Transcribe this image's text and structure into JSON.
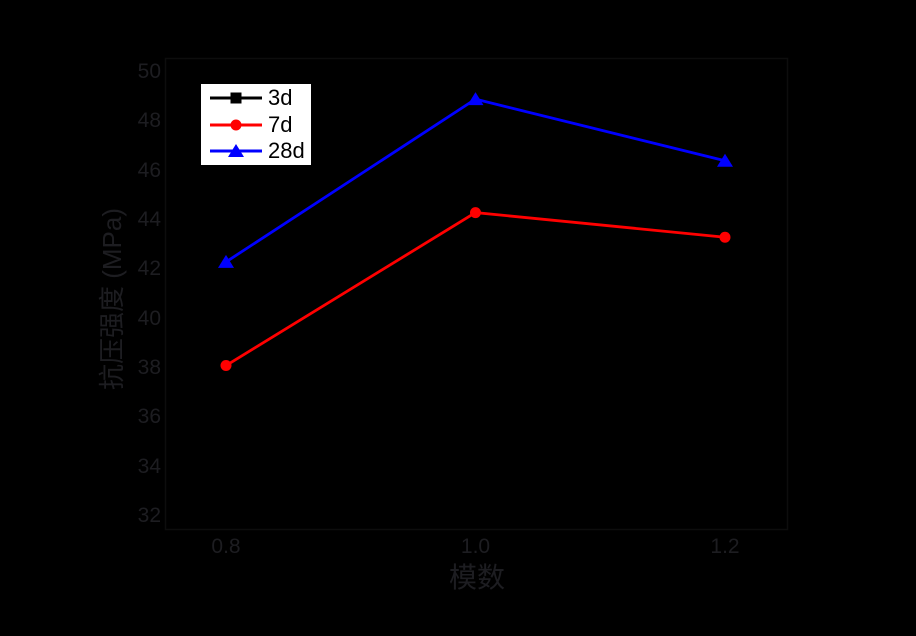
{
  "figure": {
    "background": "#000000",
    "axis_text_color": "#1d1d21",
    "note_visible_elements": "axis text rendered near-black on black background"
  },
  "chart_data": {
    "type": "line",
    "title": "",
    "xlabel": "模数",
    "ylabel": "抗压强度 (MPa)",
    "x": [
      0.8,
      1.0,
      1.2
    ],
    "xtick_labels": [
      "0.8",
      "1.0",
      "1.2"
    ],
    "ytick_labels": [
      "50",
      "48",
      "46",
      "44",
      "42",
      "40",
      "38",
      "36",
      "34",
      "32"
    ],
    "xlim": [
      0.75,
      1.25
    ],
    "ylim": [
      31.4,
      50.6
    ],
    "grid": false,
    "legend_position": "top-left-inside",
    "series": [
      {
        "name": "3d",
        "color": "#000000",
        "marker": "square",
        "values": [
          null,
          null,
          null
        ]
      },
      {
        "name": "7d",
        "color": "#ff0000",
        "marker": "circle",
        "values": [
          38.1,
          44.3,
          43.3
        ]
      },
      {
        "name": "28d",
        "color": "#0000ff",
        "marker": "triangle",
        "values": [
          42.3,
          48.9,
          46.4
        ]
      }
    ]
  },
  "legend": {
    "background": "#ffffff",
    "items": [
      {
        "label": "3d",
        "color": "#000000",
        "marker": "square"
      },
      {
        "label": "7d",
        "color": "#ff0000",
        "marker": "circle"
      },
      {
        "label": "28d",
        "color": "#0000ff",
        "marker": "triangle"
      }
    ]
  }
}
